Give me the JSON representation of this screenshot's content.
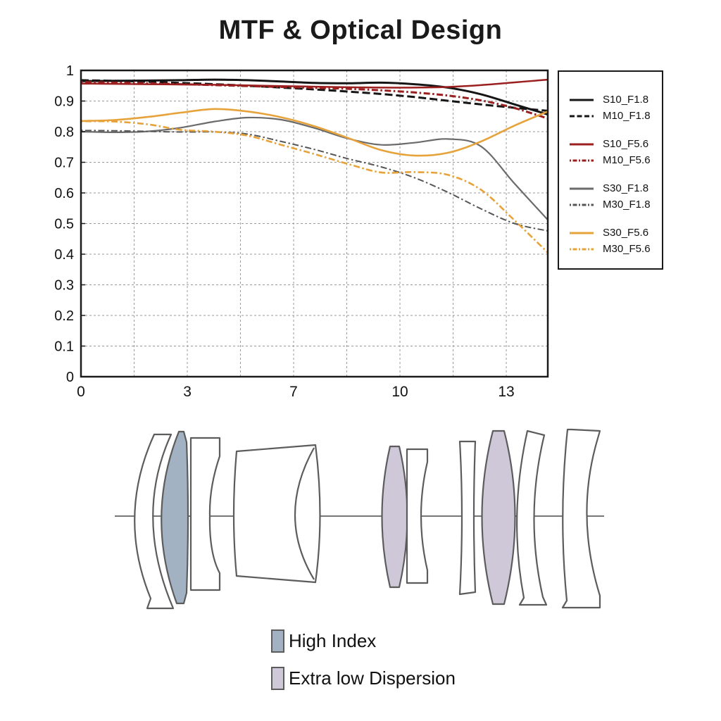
{
  "chart_data": {
    "type": "line",
    "title": "MTF & Optical Design",
    "x_axis": {
      "tick_labels": [
        "0",
        "3",
        "7",
        "10",
        "13"
      ],
      "tick_positions": [
        0,
        0.2278,
        0.4555,
        0.6833,
        0.9111
      ],
      "minor_grid_positions": [
        0.1139,
        0.3416,
        0.5694,
        0.7972
      ]
    },
    "y_axis": {
      "min": 0,
      "max": 1,
      "tick_step": 0.1,
      "tick_labels_top_to_bottom": [
        "1",
        "0.9",
        "0.8",
        "0.7",
        "0.6",
        "0.5",
        "0.4",
        "0.3",
        "0.2",
        "0.1",
        "0"
      ]
    },
    "grid": true,
    "legend_position": "right",
    "sample_fractions": [
      0,
      0.071,
      0.143,
      0.214,
      0.286,
      0.357,
      0.429,
      0.5,
      0.571,
      0.643,
      0.714,
      0.786,
      0.857,
      0.929,
      1
    ],
    "series": [
      {
        "name": "S10_F1.8",
        "color": "#151515",
        "dash": "solid",
        "width": 3,
        "values": [
          0.965,
          0.966,
          0.967,
          0.968,
          0.97,
          0.968,
          0.964,
          0.959,
          0.958,
          0.96,
          0.955,
          0.944,
          0.922,
          0.889,
          0.856
        ]
      },
      {
        "name": "M10_F1.8",
        "color": "#151515",
        "dash": "dash",
        "width": 3,
        "values": [
          0.968,
          0.966,
          0.963,
          0.959,
          0.955,
          0.95,
          0.944,
          0.938,
          0.931,
          0.923,
          0.913,
          0.901,
          0.889,
          0.878,
          0.868
        ]
      },
      {
        "name": "S10_F5.6",
        "color": "#9b1f1f",
        "dash": "solid",
        "width": 2.5,
        "values": [
          0.957,
          0.956,
          0.955,
          0.954,
          0.953,
          0.951,
          0.949,
          0.947,
          0.945,
          0.944,
          0.944,
          0.946,
          0.952,
          0.961,
          0.97
        ]
      },
      {
        "name": "M10_F5.6",
        "color": "#9b1f1f",
        "dash": "dashdot",
        "width": 3,
        "values": [
          0.962,
          0.96,
          0.958,
          0.955,
          0.952,
          0.949,
          0.946,
          0.943,
          0.94,
          0.935,
          0.928,
          0.918,
          0.902,
          0.877,
          0.843
        ]
      },
      {
        "name": "S30_F1.8",
        "color": "#6b6b6b",
        "dash": "solid",
        "width": 2.2,
        "values": [
          0.8,
          0.798,
          0.801,
          0.813,
          0.833,
          0.846,
          0.839,
          0.812,
          0.778,
          0.757,
          0.764,
          0.776,
          0.752,
          0.63,
          0.512
        ]
      },
      {
        "name": "M30_F1.8",
        "color": "#555555",
        "dash": "dashdot",
        "width": 2,
        "values": [
          0.804,
          0.803,
          0.801,
          0.799,
          0.799,
          0.792,
          0.768,
          0.742,
          0.712,
          0.685,
          0.65,
          0.602,
          0.548,
          0.5,
          0.476
        ]
      },
      {
        "name": "S30_F5.6",
        "color": "#e7a33b",
        "dash": "solid",
        "width": 2.6,
        "values": [
          0.835,
          0.838,
          0.848,
          0.862,
          0.874,
          0.866,
          0.847,
          0.818,
          0.78,
          0.74,
          0.722,
          0.731,
          0.768,
          0.82,
          0.866
        ]
      },
      {
        "name": "M30_F5.6",
        "color": "#e7a33b",
        "dash": "dashdot",
        "width": 2.6,
        "values": [
          0.834,
          0.833,
          0.824,
          0.806,
          0.8,
          0.787,
          0.757,
          0.727,
          0.695,
          0.667,
          0.668,
          0.659,
          0.61,
          0.51,
          0.405
        ]
      }
    ]
  },
  "lens_diagram": {
    "colors": {
      "high_index": "#a3b2c2",
      "ed": "#cfc8d8",
      "outline": "#5c5c5c",
      "axis": "#777777"
    },
    "legend": [
      {
        "label": "High Index",
        "color_key": "high_index"
      },
      {
        "label": "Extra low Dispersion",
        "color_key": "ed"
      }
    ]
  }
}
